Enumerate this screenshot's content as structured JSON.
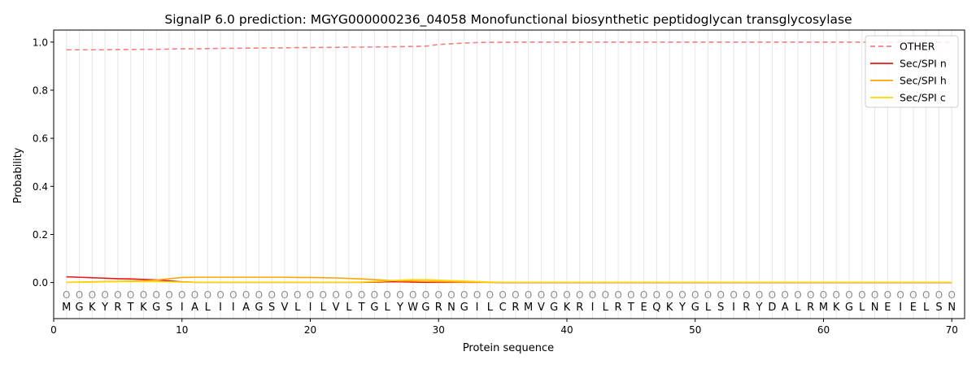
{
  "chart_data": {
    "type": "line",
    "title": "SignalP 6.0 prediction: MGYG000000236_04058 Monofunctional biosynthetic peptidoglycan transglycosylase",
    "xlabel": "Protein sequence",
    "ylabel": "Probability",
    "xlim": [
      0,
      71
    ],
    "ylim": [
      -0.15,
      1.05
    ],
    "xticks": [
      0,
      10,
      20,
      30,
      40,
      50,
      60,
      70
    ],
    "yticks": [
      0.0,
      0.2,
      0.4,
      0.6,
      0.8,
      1.0
    ],
    "ytick_labels": [
      "0.0",
      "0.2",
      "0.4",
      "0.6",
      "0.8",
      "1.0"
    ],
    "legend_position": "top-right",
    "sequence": [
      "M",
      "G",
      "K",
      "Y",
      "R",
      "T",
      "K",
      "G",
      "S",
      "I",
      "A",
      "L",
      "I",
      "I",
      "A",
      "G",
      "S",
      "V",
      "L",
      "I",
      "L",
      "V",
      "L",
      "T",
      "G",
      "L",
      "Y",
      "W",
      "G",
      "R",
      "N",
      "G",
      "I",
      "L",
      "C",
      "R",
      "M",
      "V",
      "G",
      "K",
      "R",
      "I",
      "L",
      "R",
      "T",
      "E",
      "Q",
      "K",
      "Y",
      "G",
      "L",
      "S",
      "I",
      "R",
      "Y",
      "D",
      "A",
      "L",
      "R",
      "M",
      "K",
      "G",
      "L",
      "N",
      "E",
      "I",
      "E",
      "L",
      "S",
      "N"
    ],
    "position_labels": [
      "O",
      "O",
      "O",
      "O",
      "O",
      "O",
      "O",
      "O",
      "O",
      "O",
      "O",
      "O",
      "O",
      "O",
      "O",
      "O",
      "O",
      "O",
      "O",
      "O",
      "O",
      "O",
      "O",
      "O",
      "O",
      "O",
      "O",
      "O",
      "O",
      "O",
      "O",
      "O",
      "O",
      "O",
      "O",
      "O",
      "O",
      "O",
      "O",
      "O",
      "O",
      "O",
      "O",
      "O",
      "O",
      "O",
      "O",
      "O",
      "O",
      "O",
      "O",
      "O",
      "O",
      "O",
      "O",
      "O",
      "O",
      "O",
      "O",
      "O",
      "O",
      "O",
      "O",
      "O",
      "O",
      "O",
      "O",
      "O",
      "O",
      "O"
    ],
    "series": [
      {
        "name": "OTHER",
        "color": "#f08080",
        "dashed": true,
        "values": [
          0.968,
          0.968,
          0.968,
          0.968,
          0.969,
          0.969,
          0.97,
          0.97,
          0.971,
          0.972,
          0.972,
          0.973,
          0.974,
          0.974,
          0.975,
          0.975,
          0.976,
          0.976,
          0.977,
          0.977,
          0.978,
          0.978,
          0.979,
          0.979,
          0.98,
          0.98,
          0.981,
          0.982,
          0.983,
          0.99,
          0.993,
          0.996,
          0.998,
          0.999,
          0.999,
          1.0,
          1.0,
          1.0,
          1.0,
          1.0,
          1.0,
          1.0,
          1.0,
          1.0,
          1.0,
          1.0,
          1.0,
          1.0,
          1.0,
          1.0,
          1.0,
          1.0,
          1.0,
          1.0,
          1.0,
          1.0,
          1.0,
          1.0,
          1.0,
          1.0,
          1.0,
          1.0,
          1.0,
          1.0,
          1.0,
          1.0,
          1.0,
          1.0,
          1.0,
          1.0
        ]
      },
      {
        "name": "Sec/SPI n",
        "color": "#e31a1c",
        "dashed": false,
        "values": [
          0.024,
          0.022,
          0.02,
          0.018,
          0.016,
          0.015,
          0.013,
          0.011,
          0.007,
          0.003,
          0.001,
          0.001,
          0.001,
          0.001,
          0.001,
          0.001,
          0.001,
          0.001,
          0.001,
          0.001,
          0.001,
          0.001,
          0.001,
          0.001,
          0.002,
          0.003,
          0.003,
          0.002,
          0.001,
          0.001,
          0.001,
          0.001,
          0.001,
          0.001,
          0.0,
          0.0,
          0.0,
          0.0,
          0.0,
          0.0,
          0.0,
          0.0,
          0.0,
          0.0,
          0.0,
          0.0,
          0.0,
          0.0,
          0.0,
          0.0,
          0.0,
          0.0,
          0.0,
          0.0,
          0.0,
          0.0,
          0.0,
          0.0,
          0.0,
          0.0,
          0.0,
          0.0,
          0.0,
          0.0,
          0.0,
          0.0,
          0.0,
          0.0,
          0.0,
          0.0
        ]
      },
      {
        "name": "Sec/SPI h",
        "color": "#ffa500",
        "dashed": false,
        "values": [
          0.001,
          0.002,
          0.003,
          0.004,
          0.005,
          0.006,
          0.007,
          0.01,
          0.016,
          0.021,
          0.022,
          0.022,
          0.022,
          0.022,
          0.022,
          0.022,
          0.022,
          0.022,
          0.021,
          0.021,
          0.02,
          0.019,
          0.017,
          0.015,
          0.012,
          0.009,
          0.007,
          0.006,
          0.005,
          0.004,
          0.003,
          0.002,
          0.002,
          0.001,
          0.001,
          0.001,
          0.001,
          0.001,
          0.001,
          0.001,
          0.001,
          0.001,
          0.001,
          0.001,
          0.001,
          0.001,
          0.001,
          0.001,
          0.001,
          0.001,
          0.001,
          0.001,
          0.001,
          0.001,
          0.001,
          0.001,
          0.001,
          0.001,
          0.001,
          0.001,
          0.001,
          0.001,
          0.001,
          0.001,
          0.001,
          0.001,
          0.001,
          0.001,
          0.001,
          0.001
        ]
      },
      {
        "name": "Sec/SPI c",
        "color": "#ffd700",
        "dashed": false,
        "values": [
          0.001,
          0.001,
          0.002,
          0.003,
          0.004,
          0.004,
          0.004,
          0.004,
          0.003,
          0.002,
          0.001,
          0.001,
          0.001,
          0.001,
          0.001,
          0.001,
          0.001,
          0.001,
          0.001,
          0.001,
          0.001,
          0.001,
          0.001,
          0.002,
          0.004,
          0.007,
          0.01,
          0.012,
          0.012,
          0.01,
          0.008,
          0.006,
          0.004,
          0.002,
          0.001,
          0.001,
          0.001,
          0.001,
          0.001,
          0.001,
          0.001,
          0.001,
          0.001,
          0.001,
          0.001,
          0.001,
          0.001,
          0.001,
          0.001,
          0.001,
          0.001,
          0.001,
          0.001,
          0.001,
          0.001,
          0.001,
          0.001,
          0.001,
          0.001,
          0.001,
          0.001,
          0.001,
          0.001,
          0.001,
          0.001,
          0.001,
          0.001,
          0.001,
          0.001,
          0.001
        ]
      }
    ]
  }
}
